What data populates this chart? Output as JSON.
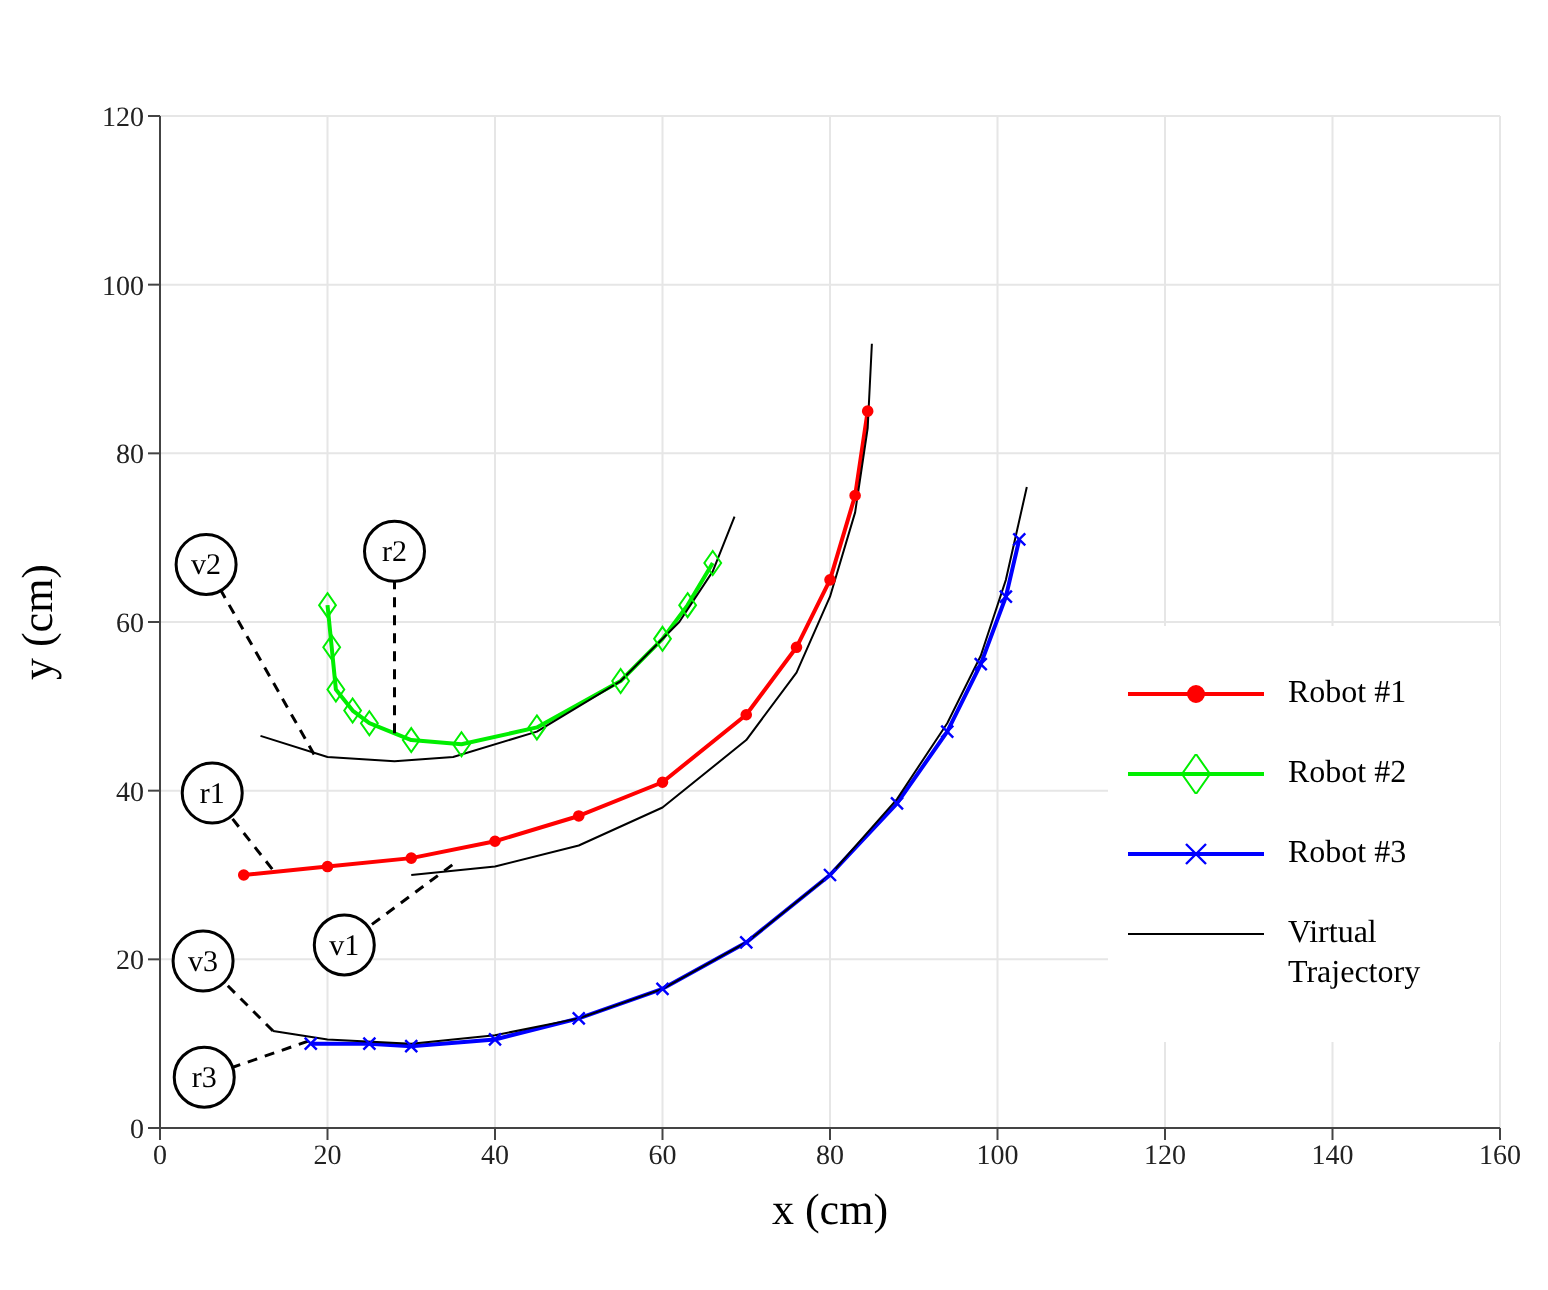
{
  "chart_data": {
    "type": "line",
    "xlabel": "x (cm)",
    "ylabel": "y (cm)",
    "xlim": [
      0,
      160
    ],
    "ylim": [
      0,
      120
    ],
    "xticks": [
      0,
      20,
      40,
      60,
      80,
      100,
      120,
      140,
      160
    ],
    "yticks": [
      0,
      20,
      40,
      60,
      80,
      100,
      120
    ],
    "grid": true,
    "legend": "right",
    "series": [
      {
        "name": "Robot #1",
        "color": "#ff0000",
        "marker": "circle",
        "x": [
          10,
          20,
          30,
          40,
          50,
          60,
          70,
          76,
          80,
          83,
          84.5
        ],
        "values": [
          30,
          31,
          32,
          34,
          37,
          41,
          49,
          57,
          65,
          75,
          85
        ]
      },
      {
        "name": "Robot #2",
        "color": "#00ee00",
        "marker": "diamond",
        "x": [
          20,
          20.5,
          21,
          23,
          25,
          30,
          36,
          45,
          55,
          60,
          63,
          66
        ],
        "values": [
          62,
          57,
          52,
          49.5,
          48,
          46,
          45.5,
          47.5,
          53,
          58,
          62,
          67
        ]
      },
      {
        "name": "Robot #3",
        "color": "#0000ff",
        "marker": "cross",
        "x": [
          18,
          25,
          30,
          40,
          50,
          60,
          70,
          80,
          88,
          94,
          98,
          101,
          102.6
        ],
        "values": [
          10,
          10,
          9.7,
          10.5,
          13,
          16.5,
          22,
          30,
          38.5,
          47,
          55,
          63,
          69.8
        ]
      },
      {
        "name": "Virtual Trajectory",
        "color": "#000000",
        "marker": "none",
        "x": [
          30,
          40,
          50,
          60,
          70,
          76,
          80,
          83,
          84.5,
          85
        ],
        "values": [
          30,
          31,
          33.5,
          38,
          46,
          54,
          63,
          73,
          83,
          93
        ]
      },
      {
        "color": "#000000",
        "marker": "none",
        "x": [
          12,
          20,
          28,
          35,
          45,
          55,
          62,
          66,
          68.6
        ],
        "values": [
          46.5,
          44,
          43.5,
          44,
          47,
          53,
          60,
          66,
          72.5
        ]
      },
      {
        "color": "#000000",
        "marker": "none",
        "x": [
          13.5,
          20,
          30,
          40,
          50,
          60,
          70,
          80,
          88,
          94,
          98,
          101,
          103.5
        ],
        "values": [
          11.5,
          10.5,
          10,
          11,
          13,
          16.5,
          22,
          30,
          39,
          48,
          56,
          65,
          76
        ]
      }
    ],
    "annotations": [
      {
        "text": "v2",
        "x": 18.4,
        "y": 44.3
      },
      {
        "text": "r2",
        "x": 28,
        "y": 46.8
      },
      {
        "text": "r1",
        "x": 13.4,
        "y": 30.7
      },
      {
        "text": "v1",
        "x": 34.9,
        "y": 31.2
      },
      {
        "text": "v3",
        "x": 13.5,
        "y": 11.5
      },
      {
        "text": "r3",
        "x": 17.7,
        "y": 10.3
      }
    ]
  }
}
